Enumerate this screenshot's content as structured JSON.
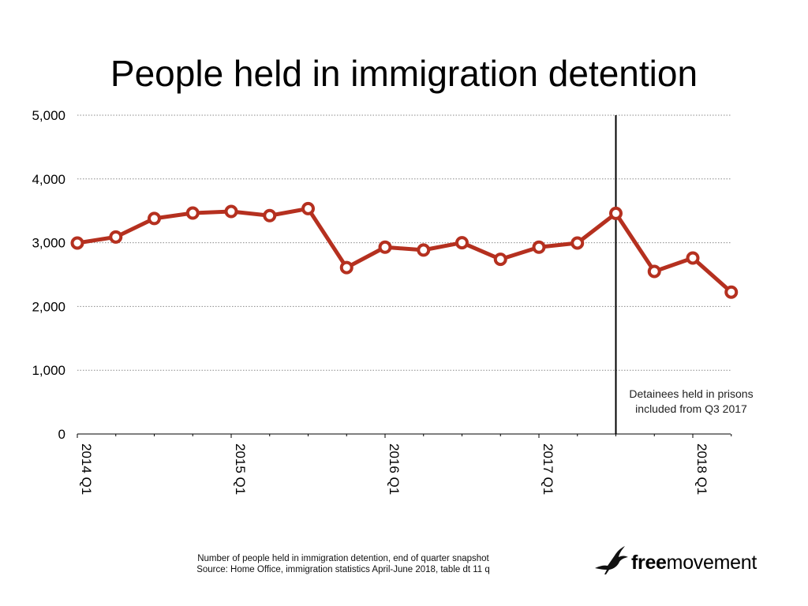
{
  "chart_data": {
    "type": "line",
    "title": "People held in immigration detention",
    "xlabel": "",
    "ylabel": "",
    "ylim": [
      0,
      5000
    ],
    "yticks": [
      0,
      1000,
      2000,
      3000,
      4000,
      5000
    ],
    "ytick_labels": [
      "0",
      "1,000",
      "2,000",
      "3,000",
      "4,000",
      "5,000"
    ],
    "x": [
      "2014 Q1",
      "2014 Q2",
      "2014 Q3",
      "2014 Q4",
      "2015 Q1",
      "2015 Q2",
      "2015 Q3",
      "2015 Q4",
      "2016 Q1",
      "2016 Q2",
      "2016 Q3",
      "2016 Q4",
      "2017 Q1",
      "2017 Q2",
      "2017 Q3",
      "2017 Q4",
      "2018 Q1",
      "2018 Q2"
    ],
    "xtick_labels": [
      "2014 Q1",
      "2015 Q1",
      "2016 Q1",
      "2017 Q1",
      "2018 Q1"
    ],
    "grid": true,
    "series": [
      {
        "values": [
          2995,
          3090,
          3380,
          3465,
          3490,
          3425,
          3535,
          2610,
          2930,
          2885,
          3000,
          2740,
          2930,
          2995,
          3460,
          2550,
          2760,
          2225
        ],
        "color": "#b5301f"
      }
    ],
    "annotation": {
      "at_x": "2017 Q3",
      "text_line1": "Detainees held in prisons",
      "text_line2": "included from Q3 2017"
    }
  },
  "footer": {
    "line1": "Number of people held in immigration detention, end of quarter snapshot",
    "line2": "Source: Home Office, immigration statistics April-June 2018, table dt 11 q"
  },
  "logo": {
    "bold_part": "free",
    "regular_part": "movement",
    "icon": "heron-bird-icon"
  }
}
